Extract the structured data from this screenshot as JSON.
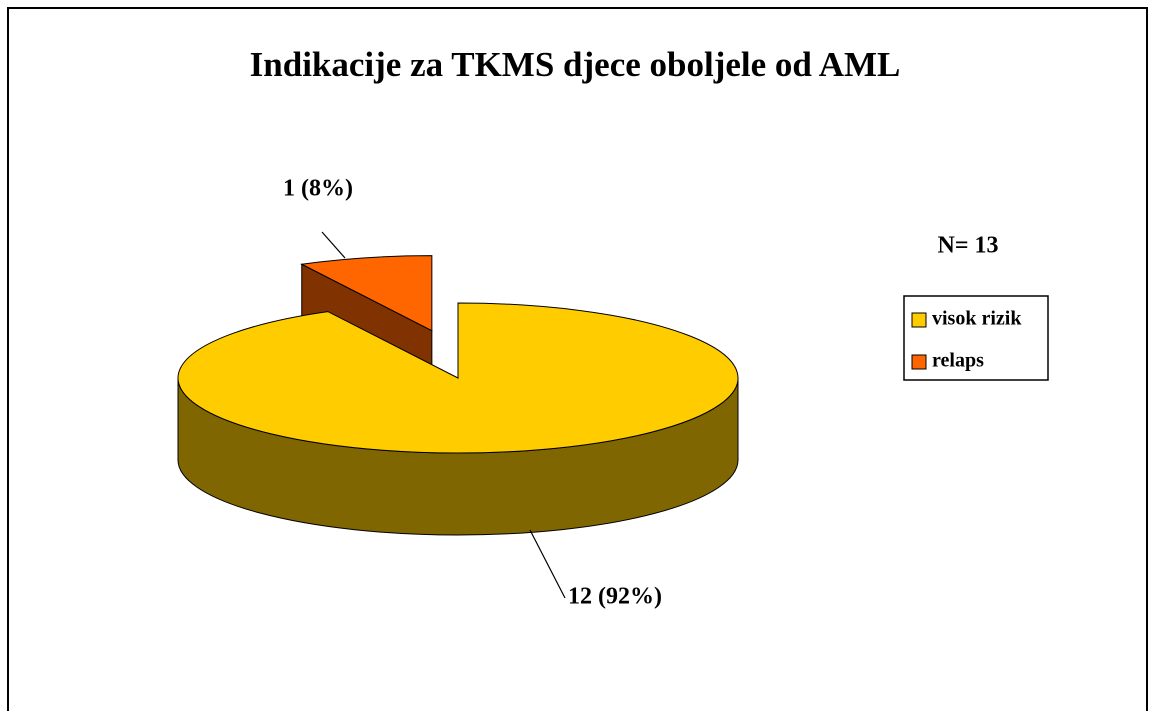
{
  "chart_data": {
    "type": "pie",
    "title": "Indikacije za TKMS djece oboljele od AML",
    "categories": [
      "visok rizik",
      "relaps"
    ],
    "values": [
      12,
      1
    ],
    "value_labels": [
      "12 (92%)",
      "1 (8%)"
    ],
    "colors": [
      "#ffcc00",
      "#ff6600"
    ],
    "annotation": "N= 13",
    "legend": "right"
  }
}
